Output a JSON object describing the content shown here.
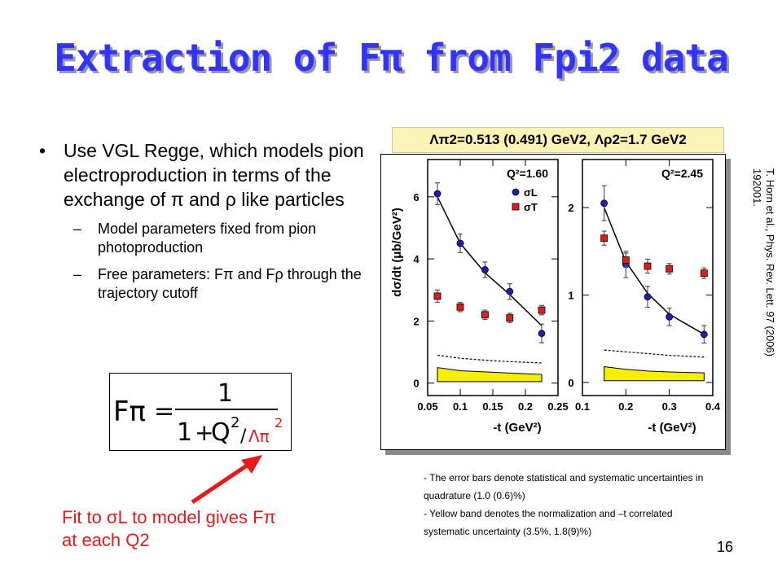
{
  "title": "Extraction of Fπ from Fpi2 data",
  "bullet": {
    "text": "Use VGL Regge, which models pion electroproduction in terms of the exchange of π and ρ like particles",
    "subs": [
      "Model parameters fixed from pion photoproduction",
      "Free parameters: Fπ and Fρ through the trajectory cutoff"
    ]
  },
  "formula": {
    "lhs": "Fπ",
    "eq": "=",
    "numerator": "1",
    "one": "1",
    "plus": "+",
    "q": "Q",
    "q_exp": "2",
    "slash": "/",
    "lambda": "Λπ",
    "lambda_exp": "2"
  },
  "fit_text": {
    "line1": "Fit to σL to model gives Fπ",
    "line2": "at each Q2"
  },
  "lambda_label": "Λπ2=0.513 (0.491) GeV2, Λρ2=1.7 GeV2",
  "caption": {
    "line1": "- The error bars denote statistical and systematic uncertainties in quadrature (1.0 (0.6)%)",
    "line2": "- Yellow band denotes the normalization and –t correlated systematic uncertainty (3.5%, 1.8(9)%)"
  },
  "citation": {
    "line1": "T. Horn et al., Phys. Rev. Lett. 97 (2006)",
    "line2": "192001."
  },
  "page_number": "16",
  "colors": {
    "title": "#3333ff",
    "fit_text": "#e8191b",
    "sigma_L": "#1e1eb4",
    "sigma_T": "#e01c1c",
    "band": "#f5f000",
    "arrow": "#e8191b"
  },
  "chart_data": [
    {
      "type": "scatter",
      "title": "Q²=1.60",
      "xlabel": "-t (GeV²)",
      "ylabel": "dσ/dt (μb/GeV²)",
      "xlim": [
        0.05,
        0.25
      ],
      "ylim": [
        -0.4,
        7.2
      ],
      "xticks": [
        "0.05",
        "0.1",
        "0.15",
        "0.2",
        "0.25"
      ],
      "yticks": [
        "0",
        "2",
        "4",
        "6"
      ],
      "legend": [
        "σL",
        "σT"
      ],
      "series": [
        {
          "name": "σL",
          "x": [
            0.065,
            0.1,
            0.138,
            0.176,
            0.225
          ],
          "y": [
            6.1,
            4.5,
            3.65,
            2.95,
            1.6
          ],
          "err": [
            0.35,
            0.3,
            0.25,
            0.25,
            0.3
          ]
        },
        {
          "name": "σT",
          "x": [
            0.065,
            0.1,
            0.138,
            0.176,
            0.225
          ],
          "y": [
            2.8,
            2.45,
            2.2,
            2.1,
            2.35
          ],
          "err": [
            0.2,
            0.15,
            0.15,
            0.15,
            0.15
          ]
        }
      ],
      "fit_curve": {
        "x": [
          0.065,
          0.1,
          0.138,
          0.176,
          0.225
        ],
        "y": [
          6.0,
          4.5,
          3.55,
          2.85,
          1.85
        ]
      },
      "dashed_curve": {
        "x": [
          0.065,
          0.1,
          0.15,
          0.2,
          0.225
        ],
        "y": [
          0.9,
          0.8,
          0.72,
          0.67,
          0.65
        ]
      },
      "band": {
        "x": [
          0.065,
          0.1,
          0.15,
          0.2,
          0.225
        ],
        "top": [
          0.5,
          0.4,
          0.35,
          0.3,
          0.28
        ],
        "bottom": [
          0.05,
          0.05,
          0.05,
          0.05,
          0.05
        ]
      }
    },
    {
      "type": "scatter",
      "title": "Q²=2.45",
      "xlabel": "-t (GeV²)",
      "ylabel": "",
      "xlim": [
        0.1,
        0.4
      ],
      "ylim": [
        -0.15,
        2.55
      ],
      "xticks": [
        "0.1",
        "0.2",
        "0.3",
        "0.4"
      ],
      "yticks": [
        "0",
        "1",
        "2"
      ],
      "series": [
        {
          "name": "σL",
          "x": [
            0.15,
            0.2,
            0.25,
            0.3,
            0.38
          ],
          "y": [
            2.05,
            1.35,
            0.98,
            0.75,
            0.55
          ],
          "err": [
            0.2,
            0.15,
            0.12,
            0.1,
            0.1
          ]
        },
        {
          "name": "σT",
          "x": [
            0.15,
            0.2,
            0.25,
            0.3,
            0.38
          ],
          "y": [
            1.65,
            1.4,
            1.33,
            1.3,
            1.25
          ],
          "err": [
            0.08,
            0.08,
            0.08,
            0.06,
            0.06
          ]
        }
      ],
      "fit_curve": {
        "x": [
          0.15,
          0.2,
          0.25,
          0.3,
          0.38
        ],
        "y": [
          2.0,
          1.38,
          1.02,
          0.78,
          0.55
        ]
      },
      "dashed_curve": {
        "x": [
          0.15,
          0.2,
          0.25,
          0.3,
          0.38
        ],
        "y": [
          0.37,
          0.35,
          0.33,
          0.31,
          0.29
        ]
      },
      "band": {
        "x": [
          0.15,
          0.2,
          0.25,
          0.3,
          0.38
        ],
        "top": [
          0.18,
          0.15,
          0.13,
          0.12,
          0.11
        ],
        "bottom": [
          0.02,
          0.02,
          0.02,
          0.02,
          0.02
        ]
      }
    }
  ]
}
